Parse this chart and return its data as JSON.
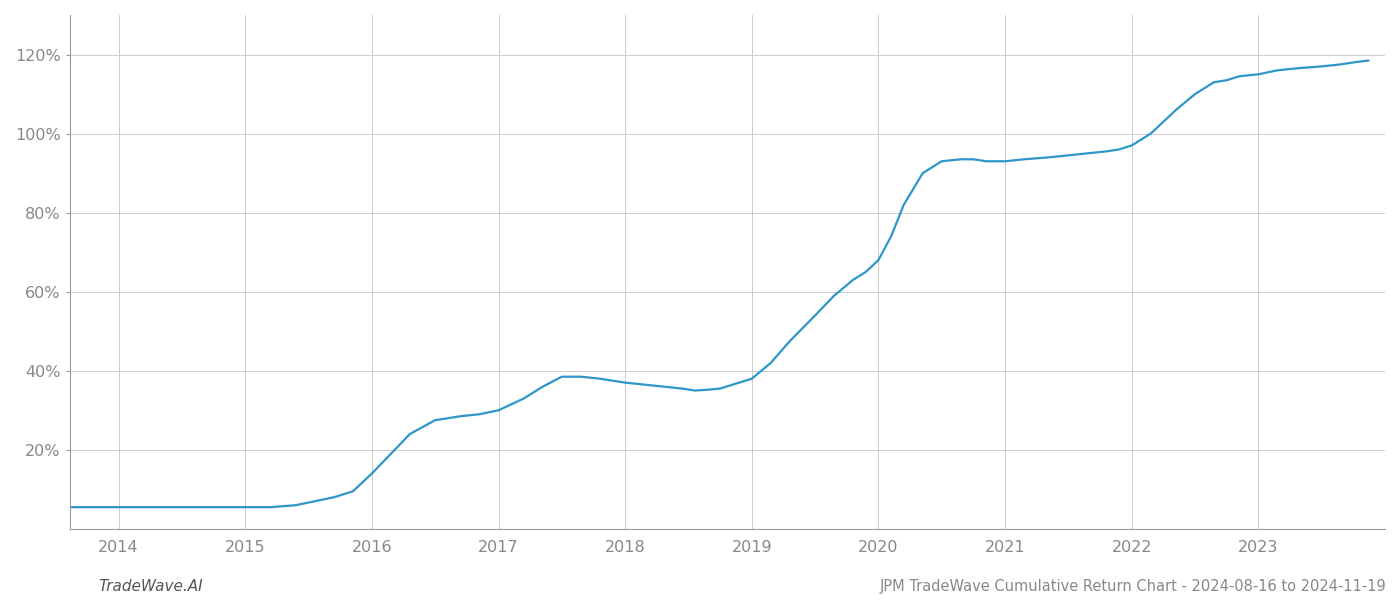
{
  "title": "JPM TradeWave Cumulative Return Chart - 2024-08-16 to 2024-11-19",
  "watermark": "TradeWave.AI",
  "line_color": "#2E96C8",
  "background_color": "#ffffff",
  "grid_color": "#cccccc",
  "x_values": [
    2013.63,
    2014.0,
    2014.2,
    2014.4,
    2014.6,
    2014.8,
    2015.0,
    2015.2,
    2015.4,
    2015.55,
    2015.7,
    2015.85,
    2016.0,
    2016.15,
    2016.3,
    2016.5,
    2016.7,
    2016.85,
    2017.0,
    2017.2,
    2017.35,
    2017.5,
    2017.65,
    2017.8,
    2017.9,
    2018.0,
    2018.15,
    2018.3,
    2018.45,
    2018.55,
    2018.65,
    2018.75,
    2018.85,
    2019.0,
    2019.15,
    2019.3,
    2019.5,
    2019.65,
    2019.8,
    2019.9,
    2020.0,
    2020.1,
    2020.2,
    2020.35,
    2020.5,
    2020.65,
    2020.75,
    2020.85,
    2021.0,
    2021.15,
    2021.35,
    2021.5,
    2021.65,
    2021.8,
    2021.9,
    2022.0,
    2022.15,
    2022.35,
    2022.5,
    2022.65,
    2022.75,
    2022.85,
    2023.0,
    2023.15,
    2023.3,
    2023.5,
    2023.65,
    2023.75,
    2023.87
  ],
  "y_values": [
    5.5,
    5.5,
    5.5,
    5.5,
    5.5,
    5.5,
    5.5,
    5.5,
    6.0,
    7.0,
    8.0,
    9.5,
    14.0,
    19.0,
    24.0,
    27.5,
    28.5,
    29.0,
    30.0,
    33.0,
    36.0,
    38.5,
    38.5,
    38.0,
    37.5,
    37.0,
    36.5,
    36.0,
    35.5,
    35.0,
    35.2,
    35.5,
    36.5,
    38.0,
    42.0,
    47.5,
    54.0,
    59.0,
    63.0,
    65.0,
    68.0,
    74.0,
    82.0,
    90.0,
    93.0,
    93.5,
    93.5,
    93.0,
    93.0,
    93.5,
    94.0,
    94.5,
    95.0,
    95.5,
    96.0,
    97.0,
    100.0,
    106.0,
    110.0,
    113.0,
    113.5,
    114.5,
    115.0,
    116.0,
    116.5,
    117.0,
    117.5,
    118.0,
    118.5
  ],
  "x_ticks": [
    2014,
    2015,
    2016,
    2017,
    2018,
    2019,
    2020,
    2021,
    2022,
    2023
  ],
  "y_ticks": [
    20,
    40,
    60,
    80,
    100,
    120
  ],
  "xlim": [
    2013.62,
    2024.0
  ],
  "ylim": [
    0,
    130
  ],
  "title_fontsize": 10.5,
  "watermark_fontsize": 11,
  "tick_fontsize": 11.5,
  "line_width": 1.6
}
